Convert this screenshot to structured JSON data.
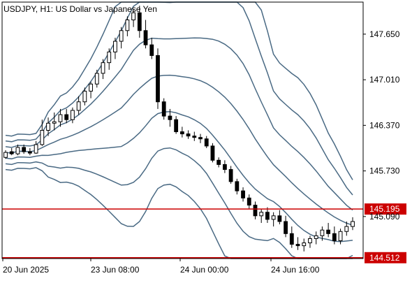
{
  "chart_data": {
    "type": "candlestick",
    "title": "USDJPY, H1:  US Dollar vs Japanese Yen",
    "y_ticks": [
      "147.650",
      "147.010",
      "146.370",
      "145.730",
      "145.090"
    ],
    "x_ticks": [
      "20 Jun 2025",
      "23 Jun 08:00",
      "24 Jun 00:00",
      "24 Jun 16:00"
    ],
    "horizontal_lines": [
      {
        "value": 145.195,
        "label": "145.195",
        "color": "#cc0000"
      },
      {
        "value": 144.512,
        "label": "144.512",
        "color": "#cc0000"
      }
    ],
    "indicator": "Bollinger Bands (multiple envelopes)",
    "ylim": [
      144.5,
      148.1
    ],
    "colors": {
      "bull_fill": "#ffffff",
      "bear_fill": "#000000",
      "candle_line": "#000000",
      "bands": "#4a6a84",
      "level": "#cc0000",
      "axis": "#000000",
      "grid": "none"
    },
    "candles": [
      [
        145.92,
        146.02,
        145.9,
        145.99
      ],
      [
        146.0,
        146.05,
        145.95,
        145.97
      ],
      [
        145.97,
        146.1,
        145.95,
        146.06
      ],
      [
        146.06,
        146.1,
        145.97,
        146.0
      ],
      [
        146.0,
        146.05,
        145.95,
        145.98
      ],
      [
        145.98,
        146.15,
        145.97,
        146.1
      ],
      [
        146.1,
        146.45,
        146.08,
        146.3
      ],
      [
        146.3,
        146.48,
        146.22,
        146.4
      ],
      [
        146.4,
        146.55,
        146.3,
        146.42
      ],
      [
        146.42,
        146.6,
        146.35,
        146.52
      ],
      [
        146.52,
        146.6,
        146.4,
        146.45
      ],
      [
        146.45,
        146.62,
        146.4,
        146.58
      ],
      [
        146.58,
        146.78,
        146.52,
        146.7
      ],
      [
        146.7,
        146.9,
        146.65,
        146.85
      ],
      [
        146.85,
        146.98,
        146.75,
        146.95
      ],
      [
        146.95,
        147.15,
        146.9,
        147.1
      ],
      [
        147.1,
        147.3,
        147.02,
        147.25
      ],
      [
        147.25,
        147.45,
        147.15,
        147.4
      ],
      [
        147.4,
        147.6,
        147.3,
        147.55
      ],
      [
        147.55,
        147.75,
        147.45,
        147.7
      ],
      [
        147.7,
        147.9,
        147.62,
        147.85
      ],
      [
        147.85,
        148.0,
        147.75,
        147.95
      ],
      [
        147.95,
        148.05,
        147.6,
        147.7
      ],
      [
        147.7,
        147.85,
        147.45,
        147.5
      ],
      [
        147.5,
        147.6,
        147.3,
        147.35
      ],
      [
        147.35,
        147.45,
        146.6,
        146.7
      ],
      [
        146.7,
        146.75,
        146.45,
        146.5
      ],
      [
        146.5,
        146.6,
        146.35,
        146.45
      ],
      [
        146.45,
        146.5,
        146.25,
        146.28
      ],
      [
        146.28,
        146.35,
        146.2,
        146.25
      ],
      [
        146.25,
        146.3,
        146.18,
        146.22
      ],
      [
        146.22,
        146.28,
        146.15,
        146.2
      ],
      [
        146.2,
        146.25,
        146.12,
        146.18
      ],
      [
        146.18,
        146.22,
        146.05,
        146.08
      ],
      [
        146.08,
        146.12,
        145.85,
        145.88
      ],
      [
        145.88,
        145.92,
        145.78,
        145.82
      ],
      [
        145.82,
        145.88,
        145.7,
        145.75
      ],
      [
        145.75,
        145.8,
        145.55,
        145.58
      ],
      [
        145.58,
        145.62,
        145.4,
        145.45
      ],
      [
        145.45,
        145.5,
        145.3,
        145.35
      ],
      [
        145.35,
        145.4,
        145.2,
        145.25
      ],
      [
        145.25,
        145.3,
        145.05,
        145.1
      ],
      [
        145.1,
        145.2,
        145.0,
        145.15
      ],
      [
        145.15,
        145.22,
        145.0,
        145.05
      ],
      [
        145.05,
        145.15,
        144.95,
        145.1
      ],
      [
        145.1,
        145.18,
        144.98,
        145.02
      ],
      [
        145.02,
        145.1,
        144.8,
        144.85
      ],
      [
        144.85,
        144.95,
        144.65,
        144.7
      ],
      [
        144.7,
        144.8,
        144.62,
        144.68
      ],
      [
        144.68,
        144.78,
        144.6,
        144.72
      ],
      [
        144.72,
        144.82,
        144.65,
        144.78
      ],
      [
        144.78,
        144.88,
        144.7,
        144.82
      ],
      [
        144.82,
        144.95,
        144.75,
        144.9
      ],
      [
        144.9,
        145.0,
        144.8,
        144.85
      ],
      [
        144.85,
        144.95,
        144.7,
        144.75
      ],
      [
        144.75,
        144.92,
        144.7,
        144.88
      ],
      [
        144.88,
        145.02,
        144.82,
        144.95
      ],
      [
        144.95,
        145.08,
        144.9,
        145.02
      ]
    ]
  }
}
